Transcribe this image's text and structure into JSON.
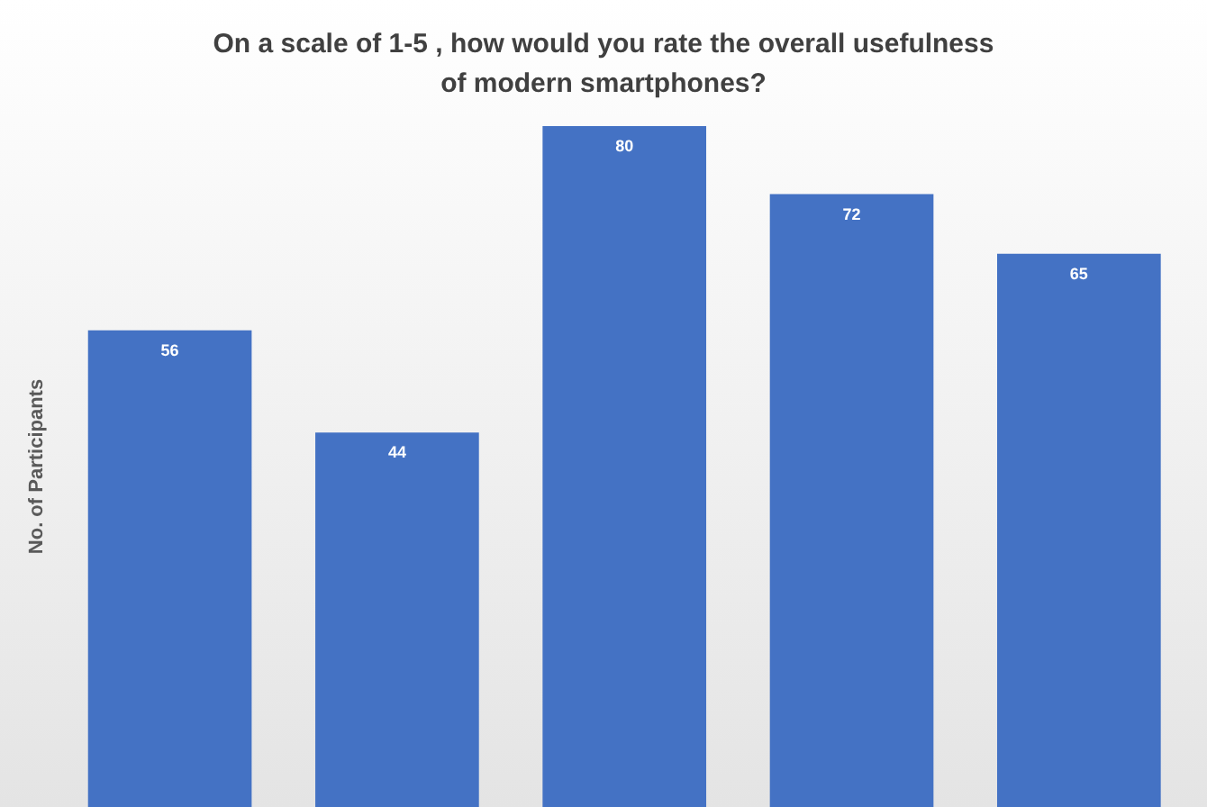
{
  "chart_data": {
    "type": "bar",
    "title": "On a scale of 1-5 , how would you rate the overall usefulness of modern smartphones?",
    "ylabel": "No. of Participants",
    "categories": [
      null,
      null,
      null,
      null,
      null
    ],
    "values": [
      56,
      44,
      80,
      72,
      65
    ],
    "color": "#4472c4",
    "data_labels": true,
    "grid": false,
    "legend": false,
    "tick_labels": false
  }
}
